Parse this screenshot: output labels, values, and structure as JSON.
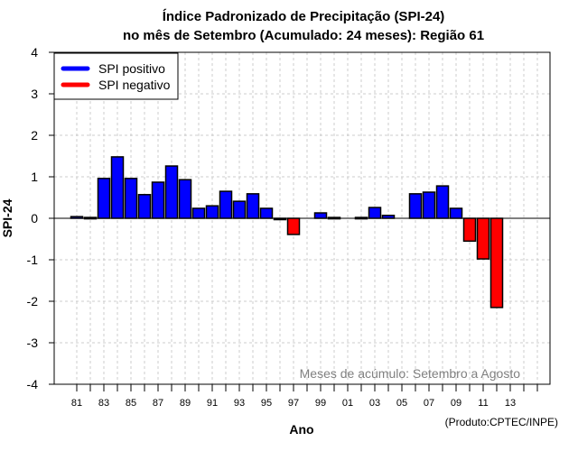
{
  "chart_data": {
    "type": "bar",
    "title": "Índice Padronizado de Precipitação (SPI-24)",
    "subtitle": "no mês de Setembro (Acumulado: 24 meses): Região 61",
    "xlabel": "Ano",
    "ylabel": "SPI-24",
    "ylim": [
      -4,
      4
    ],
    "yticks": [
      "4",
      "3",
      "2",
      "1",
      "0",
      "-1",
      "-2",
      "-3",
      "-4"
    ],
    "ytick_values": [
      4,
      3,
      2,
      1,
      0,
      -1,
      -2,
      -3,
      -4
    ],
    "xlim_years": [
      1979,
      2016
    ],
    "xtick_labels": [
      "81",
      "83",
      "85",
      "87",
      "89",
      "91",
      "93",
      "95",
      "97",
      "99",
      "01",
      "03",
      "05",
      "07",
      "09",
      "11",
      "13"
    ],
    "xtick_years": [
      1981,
      1983,
      1985,
      1987,
      1989,
      1991,
      1993,
      1995,
      1997,
      1999,
      2001,
      2003,
      2005,
      2007,
      2009,
      2011,
      2013
    ],
    "minor_tick_years": [
      1981,
      1982,
      1983,
      1984,
      1985,
      1986,
      1987,
      1988,
      1989,
      1990,
      1991,
      1992,
      1993,
      1994,
      1995,
      1996,
      1997,
      1998,
      1999,
      2000,
      2001,
      2002,
      2003,
      2004,
      2005,
      2006,
      2007,
      2008,
      2009,
      2010,
      2011,
      2012,
      2013,
      2014,
      2015
    ],
    "grid": true,
    "categories": [
      1981,
      1982,
      1983,
      1984,
      1985,
      1986,
      1987,
      1988,
      1989,
      1990,
      1991,
      1992,
      1993,
      1994,
      1995,
      1996,
      1997,
      1998,
      1999,
      2000,
      2001,
      2002,
      2003,
      2004,
      2005,
      2006,
      2007,
      2008,
      2009,
      2010,
      2011,
      2012
    ],
    "values": [
      0.04,
      0.02,
      0.96,
      1.48,
      0.96,
      0.57,
      0.87,
      1.26,
      0.93,
      0.24,
      0.3,
      0.65,
      0.41,
      0.59,
      0.24,
      -0.02,
      -0.39,
      0.0,
      0.13,
      0.02,
      0.0,
      0.02,
      0.26,
      0.07,
      0.0,
      0.59,
      0.63,
      0.78,
      0.24,
      -0.55,
      -0.98,
      -2.15
    ],
    "colors": {
      "positive": "#0000ff",
      "negative": "#ff0000",
      "grid": "#cccccc",
      "annotation": "#808080"
    },
    "legend": {
      "placement": "top-left",
      "entries": [
        {
          "label": "SPI positivo",
          "color": "#0000ff"
        },
        {
          "label": "SPI negativo",
          "color": "#ff0000"
        }
      ]
    },
    "annotation": "Meses de acúmulo: Setembro a Agosto",
    "credit": "(Produto:CPTEC/INPE)"
  }
}
